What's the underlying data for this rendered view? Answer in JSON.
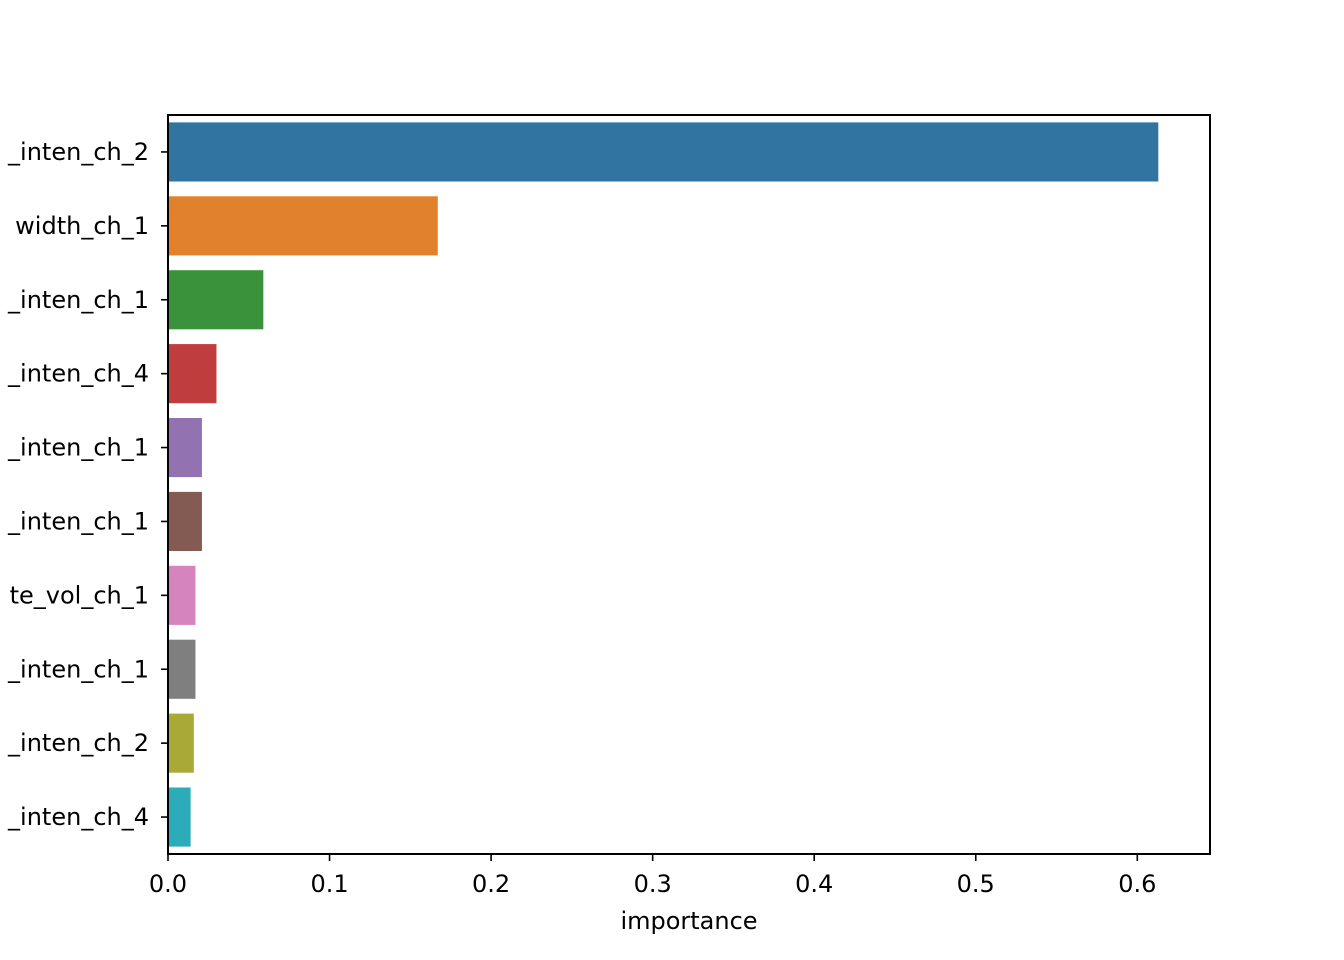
{
  "chart_data": {
    "type": "bar",
    "orientation": "horizontal",
    "categories": [
      "_inten_ch_2",
      "width_ch_1",
      "_inten_ch_1",
      "_inten_ch_4",
      "_inten_ch_1",
      "_inten_ch_1",
      "te_vol_ch_1",
      "_inten_ch_1",
      "_inten_ch_2",
      "_inten_ch_4"
    ],
    "values": [
      0.613,
      0.167,
      0.059,
      0.03,
      0.021,
      0.021,
      0.017,
      0.017,
      0.016,
      0.014
    ],
    "colors": [
      "#3274a1",
      "#e1812c",
      "#3a923a",
      "#c03d3e",
      "#9372b2",
      "#845b53",
      "#d684bd",
      "#7f7f7f",
      "#a9aa35",
      "#2eabb8"
    ],
    "xlabel": "importance",
    "ylabel": "",
    "title": "",
    "xlim": [
      0,
      0.645
    ],
    "xticks": [
      0.0,
      0.1,
      0.2,
      0.3,
      0.4,
      0.5,
      0.6
    ],
    "xtick_labels": [
      "0.0",
      "0.1",
      "0.2",
      "0.3",
      "0.4",
      "0.5",
      "0.6"
    ],
    "grid": false,
    "legend": "none"
  }
}
